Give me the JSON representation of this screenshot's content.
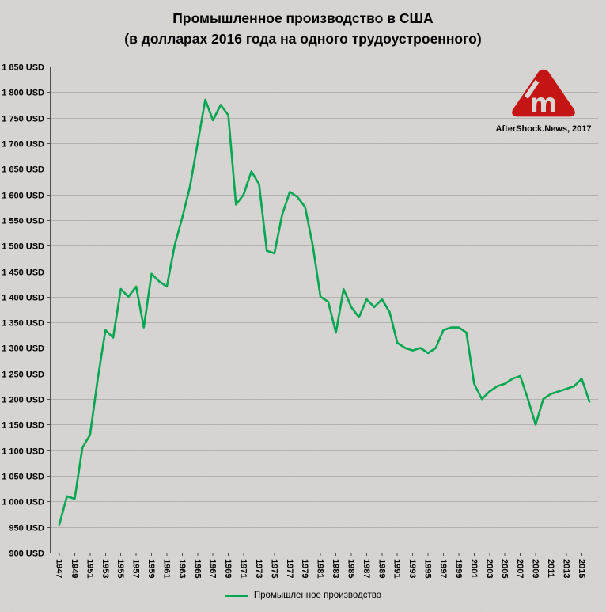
{
  "header": {
    "title_line1": "Промышленное производство в США",
    "title_line2": "(в долларах 2016 года на одного трудоустроенного)"
  },
  "branding": {
    "credit": "AfterShock.News, 2017",
    "logo_glyph": "m",
    "logo_color": "#c41414"
  },
  "chart_data": {
    "type": "line",
    "title": "Промышленное производство в США (в долларах 2016 года на одного трудоустроенного)",
    "xlabel": "",
    "ylabel": "",
    "ylim": [
      900,
      1850
    ],
    "y_tick_step": 50,
    "grid": true,
    "legend_position": "bottom",
    "x": [
      1947,
      1948,
      1949,
      1950,
      1951,
      1952,
      1953,
      1954,
      1955,
      1956,
      1957,
      1958,
      1959,
      1960,
      1961,
      1962,
      1963,
      1964,
      1965,
      1966,
      1967,
      1968,
      1969,
      1970,
      1971,
      1972,
      1973,
      1974,
      1975,
      1976,
      1977,
      1978,
      1979,
      1980,
      1981,
      1982,
      1983,
      1984,
      1985,
      1986,
      1987,
      1988,
      1989,
      1990,
      1991,
      1992,
      1993,
      1994,
      1995,
      1996,
      1997,
      1998,
      1999,
      2000,
      2001,
      2002,
      2003,
      2004,
      2005,
      2006,
      2007,
      2008,
      2009,
      2010,
      2011,
      2012,
      2013,
      2014,
      2015,
      2016
    ],
    "x_tick_labels": [
      "1947",
      "1949",
      "1951",
      "1953",
      "1955",
      "1957",
      "1959",
      "1961",
      "1963",
      "1965",
      "1967",
      "1969",
      "1971",
      "1973",
      "1975",
      "1977",
      "1979",
      "1981",
      "1983",
      "1985",
      "1987",
      "1989",
      "1991",
      "1993",
      "1995",
      "1997",
      "1999",
      "2001",
      "2003",
      "2005",
      "2007",
      "2009",
      "2011",
      "2013",
      "2015"
    ],
    "y_tick_labels": [
      "900 USD",
      "950 USD",
      "1 000 USD",
      "1 050 USD",
      "1 100 USD",
      "1 150 USD",
      "1 200 USD",
      "1 250 USD",
      "1 300 USD",
      "1 350 USD",
      "1 400 USD",
      "1 450 USD",
      "1 500 USD",
      "1 550 USD",
      "1 600 USD",
      "1 650 USD",
      "1 700 USD",
      "1 750 USD",
      "1 800 USD",
      "1 850 USD"
    ],
    "series": [
      {
        "name": "Промышленное производство",
        "color": "#00a651",
        "values": [
          955,
          1010,
          1005,
          1105,
          1130,
          1240,
          1335,
          1320,
          1415,
          1400,
          1420,
          1340,
          1445,
          1430,
          1420,
          1500,
          1555,
          1615,
          1700,
          1785,
          1745,
          1775,
          1755,
          1580,
          1600,
          1645,
          1620,
          1490,
          1485,
          1560,
          1605,
          1595,
          1575,
          1500,
          1400,
          1390,
          1330,
          1415,
          1380,
          1360,
          1395,
          1380,
          1395,
          1370,
          1310,
          1300,
          1295,
          1300,
          1290,
          1300,
          1335,
          1340,
          1340,
          1330,
          1230,
          1200,
          1215,
          1225,
          1230,
          1240,
          1245,
          1200,
          1150,
          1200,
          1210,
          1215,
          1220,
          1225,
          1240,
          1195
        ]
      }
    ]
  }
}
